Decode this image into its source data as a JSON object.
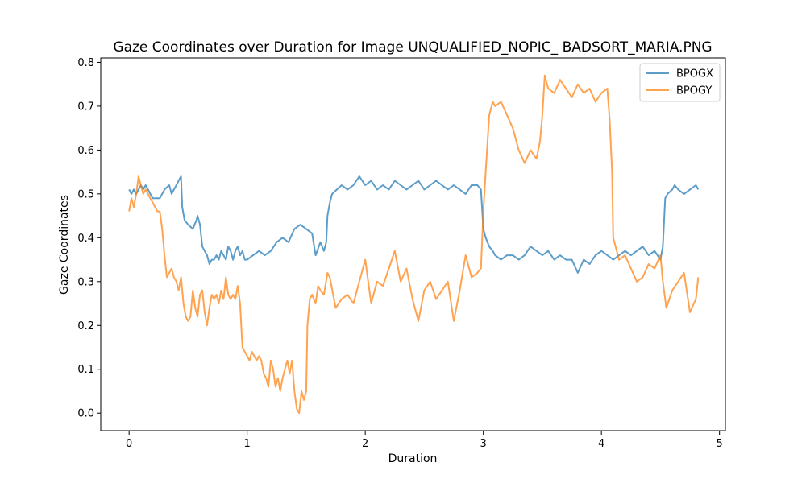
{
  "chart_data": {
    "type": "line",
    "title": "Gaze Coordinates over Duration for Image UNQUALIFIED_NOPIC_ BADSORT_MARIA.PNG",
    "xlabel": "Duration",
    "ylabel": "Gaze Coordinates",
    "xlim": [
      -0.24,
      5.05
    ],
    "ylim": [
      -0.04,
      0.81
    ],
    "xticks": [
      0,
      1,
      2,
      3,
      4,
      5
    ],
    "yticks": [
      0.0,
      0.1,
      0.2,
      0.3,
      0.4,
      0.5,
      0.6,
      0.7,
      0.8
    ],
    "grid": false,
    "legend": "top-right",
    "series": [
      {
        "name": "BPOGX",
        "color": "#1f77b4",
        "points": [
          [
            0,
            0.51
          ],
          [
            0.02,
            0.5
          ],
          [
            0.04,
            0.51
          ],
          [
            0.06,
            0.5
          ],
          [
            0.08,
            0.51
          ],
          [
            0.1,
            0.52
          ],
          [
            0.12,
            0.51
          ],
          [
            0.14,
            0.52
          ],
          [
            0.16,
            0.51
          ],
          [
            0.18,
            0.5
          ],
          [
            0.2,
            0.49
          ],
          [
            0.22,
            0.49
          ],
          [
            0.26,
            0.49
          ],
          [
            0.3,
            0.51
          ],
          [
            0.34,
            0.52
          ],
          [
            0.36,
            0.5
          ],
          [
            0.38,
            0.51
          ],
          [
            0.4,
            0.52
          ],
          [
            0.42,
            0.53
          ],
          [
            0.44,
            0.54
          ],
          [
            0.45,
            0.47
          ],
          [
            0.47,
            0.44
          ],
          [
            0.5,
            0.43
          ],
          [
            0.54,
            0.42
          ],
          [
            0.57,
            0.44
          ],
          [
            0.58,
            0.45
          ],
          [
            0.6,
            0.43
          ],
          [
            0.62,
            0.38
          ],
          [
            0.64,
            0.37
          ],
          [
            0.66,
            0.36
          ],
          [
            0.68,
            0.34
          ],
          [
            0.7,
            0.35
          ],
          [
            0.72,
            0.35
          ],
          [
            0.74,
            0.36
          ],
          [
            0.76,
            0.35
          ],
          [
            0.78,
            0.37
          ],
          [
            0.8,
            0.36
          ],
          [
            0.82,
            0.35
          ],
          [
            0.84,
            0.38
          ],
          [
            0.86,
            0.37
          ],
          [
            0.88,
            0.35
          ],
          [
            0.9,
            0.37
          ],
          [
            0.92,
            0.38
          ],
          [
            0.94,
            0.36
          ],
          [
            0.96,
            0.37
          ],
          [
            0.98,
            0.35
          ],
          [
            1.0,
            0.35
          ],
          [
            1.05,
            0.36
          ],
          [
            1.1,
            0.37
          ],
          [
            1.15,
            0.36
          ],
          [
            1.2,
            0.37
          ],
          [
            1.25,
            0.39
          ],
          [
            1.3,
            0.4
          ],
          [
            1.35,
            0.39
          ],
          [
            1.4,
            0.42
          ],
          [
            1.45,
            0.43
          ],
          [
            1.5,
            0.42
          ],
          [
            1.55,
            0.41
          ],
          [
            1.58,
            0.36
          ],
          [
            1.62,
            0.39
          ],
          [
            1.65,
            0.37
          ],
          [
            1.67,
            0.39
          ],
          [
            1.68,
            0.45
          ],
          [
            1.7,
            0.48
          ],
          [
            1.72,
            0.5
          ],
          [
            1.76,
            0.51
          ],
          [
            1.8,
            0.52
          ],
          [
            1.85,
            0.51
          ],
          [
            1.9,
            0.52
          ],
          [
            1.95,
            0.54
          ],
          [
            2.0,
            0.52
          ],
          [
            2.05,
            0.53
          ],
          [
            2.1,
            0.51
          ],
          [
            2.15,
            0.52
          ],
          [
            2.2,
            0.51
          ],
          [
            2.25,
            0.53
          ],
          [
            2.3,
            0.52
          ],
          [
            2.35,
            0.51
          ],
          [
            2.4,
            0.52
          ],
          [
            2.45,
            0.53
          ],
          [
            2.5,
            0.51
          ],
          [
            2.55,
            0.52
          ],
          [
            2.6,
            0.53
          ],
          [
            2.65,
            0.52
          ],
          [
            2.7,
            0.51
          ],
          [
            2.75,
            0.52
          ],
          [
            2.8,
            0.51
          ],
          [
            2.85,
            0.5
          ],
          [
            2.9,
            0.52
          ],
          [
            2.95,
            0.52
          ],
          [
            2.98,
            0.51
          ],
          [
            3.0,
            0.42
          ],
          [
            3.02,
            0.4
          ],
          [
            3.05,
            0.38
          ],
          [
            3.08,
            0.37
          ],
          [
            3.1,
            0.36
          ],
          [
            3.15,
            0.35
          ],
          [
            3.2,
            0.36
          ],
          [
            3.25,
            0.36
          ],
          [
            3.3,
            0.35
          ],
          [
            3.35,
            0.36
          ],
          [
            3.4,
            0.38
          ],
          [
            3.45,
            0.37
          ],
          [
            3.5,
            0.36
          ],
          [
            3.55,
            0.37
          ],
          [
            3.6,
            0.35
          ],
          [
            3.65,
            0.36
          ],
          [
            3.7,
            0.35
          ],
          [
            3.75,
            0.35
          ],
          [
            3.8,
            0.32
          ],
          [
            3.85,
            0.35
          ],
          [
            3.9,
            0.34
          ],
          [
            3.95,
            0.36
          ],
          [
            4.0,
            0.37
          ],
          [
            4.05,
            0.36
          ],
          [
            4.1,
            0.35
          ],
          [
            4.15,
            0.36
          ],
          [
            4.2,
            0.37
          ],
          [
            4.25,
            0.36
          ],
          [
            4.3,
            0.37
          ],
          [
            4.35,
            0.38
          ],
          [
            4.4,
            0.36
          ],
          [
            4.45,
            0.37
          ],
          [
            4.5,
            0.35
          ],
          [
            4.52,
            0.38
          ],
          [
            4.54,
            0.49
          ],
          [
            4.56,
            0.5
          ],
          [
            4.6,
            0.51
          ],
          [
            4.62,
            0.52
          ],
          [
            4.65,
            0.51
          ],
          [
            4.7,
            0.5
          ],
          [
            4.75,
            0.51
          ],
          [
            4.8,
            0.52
          ],
          [
            4.82,
            0.51
          ]
        ]
      },
      {
        "name": "BPOGY",
        "color": "#ff7f0e",
        "points": [
          [
            0,
            0.46
          ],
          [
            0.02,
            0.49
          ],
          [
            0.04,
            0.47
          ],
          [
            0.06,
            0.5
          ],
          [
            0.08,
            0.54
          ],
          [
            0.1,
            0.52
          ],
          [
            0.12,
            0.5
          ],
          [
            0.14,
            0.51
          ],
          [
            0.16,
            0.5
          ],
          [
            0.18,
            0.49
          ],
          [
            0.2,
            0.48
          ],
          [
            0.22,
            0.47
          ],
          [
            0.24,
            0.46
          ],
          [
            0.26,
            0.46
          ],
          [
            0.28,
            0.42
          ],
          [
            0.3,
            0.36
          ],
          [
            0.32,
            0.31
          ],
          [
            0.34,
            0.32
          ],
          [
            0.36,
            0.33
          ],
          [
            0.38,
            0.31
          ],
          [
            0.4,
            0.3
          ],
          [
            0.42,
            0.28
          ],
          [
            0.44,
            0.31
          ],
          [
            0.46,
            0.25
          ],
          [
            0.48,
            0.22
          ],
          [
            0.5,
            0.21
          ],
          [
            0.52,
            0.22
          ],
          [
            0.54,
            0.28
          ],
          [
            0.56,
            0.24
          ],
          [
            0.58,
            0.22
          ],
          [
            0.6,
            0.27
          ],
          [
            0.62,
            0.28
          ],
          [
            0.64,
            0.23
          ],
          [
            0.66,
            0.2
          ],
          [
            0.68,
            0.24
          ],
          [
            0.7,
            0.27
          ],
          [
            0.72,
            0.26
          ],
          [
            0.74,
            0.27
          ],
          [
            0.76,
            0.25
          ],
          [
            0.78,
            0.28
          ],
          [
            0.8,
            0.26
          ],
          [
            0.82,
            0.31
          ],
          [
            0.84,
            0.27
          ],
          [
            0.86,
            0.26
          ],
          [
            0.88,
            0.27
          ],
          [
            0.9,
            0.26
          ],
          [
            0.92,
            0.29
          ],
          [
            0.94,
            0.25
          ],
          [
            0.95,
            0.2
          ],
          [
            0.96,
            0.15
          ],
          [
            0.98,
            0.14
          ],
          [
            1.0,
            0.13
          ],
          [
            1.02,
            0.12
          ],
          [
            1.04,
            0.14
          ],
          [
            1.06,
            0.13
          ],
          [
            1.08,
            0.12
          ],
          [
            1.1,
            0.13
          ],
          [
            1.12,
            0.12
          ],
          [
            1.14,
            0.09
          ],
          [
            1.16,
            0.08
          ],
          [
            1.18,
            0.06
          ],
          [
            1.2,
            0.12
          ],
          [
            1.22,
            0.1
          ],
          [
            1.24,
            0.06
          ],
          [
            1.26,
            0.08
          ],
          [
            1.28,
            0.05
          ],
          [
            1.3,
            0.08
          ],
          [
            1.32,
            0.1
          ],
          [
            1.34,
            0.12
          ],
          [
            1.36,
            0.09
          ],
          [
            1.38,
            0.12
          ],
          [
            1.4,
            0.05
          ],
          [
            1.42,
            0.01
          ],
          [
            1.44,
            0.0
          ],
          [
            1.46,
            0.05
          ],
          [
            1.48,
            0.03
          ],
          [
            1.5,
            0.05
          ],
          [
            1.51,
            0.2
          ],
          [
            1.53,
            0.26
          ],
          [
            1.55,
            0.27
          ],
          [
            1.58,
            0.25
          ],
          [
            1.6,
            0.29
          ],
          [
            1.62,
            0.28
          ],
          [
            1.65,
            0.27
          ],
          [
            1.68,
            0.32
          ],
          [
            1.7,
            0.31
          ],
          [
            1.75,
            0.24
          ],
          [
            1.8,
            0.26
          ],
          [
            1.85,
            0.27
          ],
          [
            1.9,
            0.25
          ],
          [
            1.95,
            0.3
          ],
          [
            2.0,
            0.35
          ],
          [
            2.05,
            0.25
          ],
          [
            2.1,
            0.3
          ],
          [
            2.15,
            0.29
          ],
          [
            2.2,
            0.33
          ],
          [
            2.25,
            0.37
          ],
          [
            2.3,
            0.3
          ],
          [
            2.35,
            0.33
          ],
          [
            2.4,
            0.26
          ],
          [
            2.45,
            0.21
          ],
          [
            2.5,
            0.28
          ],
          [
            2.55,
            0.3
          ],
          [
            2.6,
            0.26
          ],
          [
            2.65,
            0.28
          ],
          [
            2.7,
            0.3
          ],
          [
            2.75,
            0.21
          ],
          [
            2.8,
            0.28
          ],
          [
            2.85,
            0.36
          ],
          [
            2.9,
            0.31
          ],
          [
            2.95,
            0.32
          ],
          [
            2.98,
            0.33
          ],
          [
            3.0,
            0.46
          ],
          [
            3.02,
            0.55
          ],
          [
            3.05,
            0.68
          ],
          [
            3.08,
            0.71
          ],
          [
            3.1,
            0.7
          ],
          [
            3.15,
            0.71
          ],
          [
            3.2,
            0.68
          ],
          [
            3.25,
            0.65
          ],
          [
            3.3,
            0.6
          ],
          [
            3.35,
            0.57
          ],
          [
            3.4,
            0.6
          ],
          [
            3.45,
            0.58
          ],
          [
            3.48,
            0.62
          ],
          [
            3.5,
            0.68
          ],
          [
            3.52,
            0.77
          ],
          [
            3.55,
            0.74
          ],
          [
            3.6,
            0.73
          ],
          [
            3.65,
            0.76
          ],
          [
            3.7,
            0.74
          ],
          [
            3.75,
            0.72
          ],
          [
            3.8,
            0.75
          ],
          [
            3.85,
            0.73
          ],
          [
            3.9,
            0.74
          ],
          [
            3.95,
            0.71
          ],
          [
            4.0,
            0.73
          ],
          [
            4.05,
            0.74
          ],
          [
            4.07,
            0.67
          ],
          [
            4.09,
            0.55
          ],
          [
            4.1,
            0.4
          ],
          [
            4.15,
            0.35
          ],
          [
            4.2,
            0.36
          ],
          [
            4.25,
            0.33
          ],
          [
            4.3,
            0.3
          ],
          [
            4.35,
            0.31
          ],
          [
            4.4,
            0.34
          ],
          [
            4.45,
            0.33
          ],
          [
            4.5,
            0.36
          ],
          [
            4.52,
            0.3
          ],
          [
            4.55,
            0.24
          ],
          [
            4.6,
            0.28
          ],
          [
            4.65,
            0.3
          ],
          [
            4.7,
            0.32
          ],
          [
            4.75,
            0.23
          ],
          [
            4.8,
            0.26
          ],
          [
            4.82,
            0.31
          ]
        ]
      }
    ]
  }
}
